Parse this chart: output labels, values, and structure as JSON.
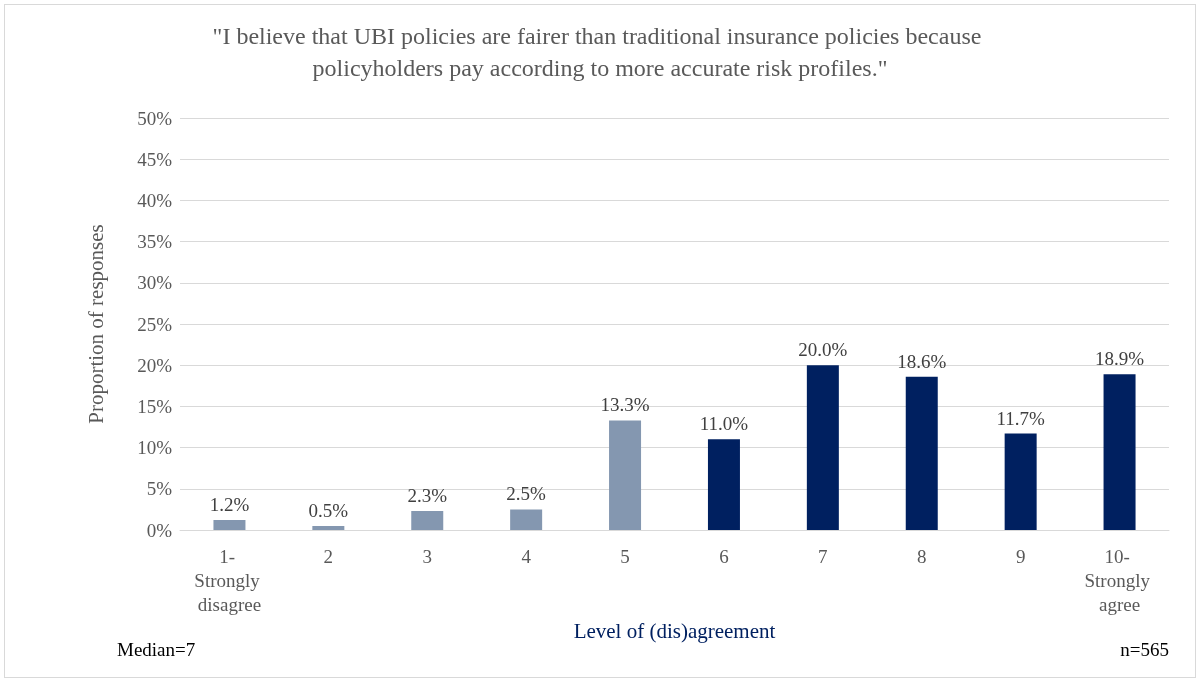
{
  "chart_data": {
    "type": "bar",
    "title": "\"I believe that UBI policies are fairer than traditional insurance policies because policyholders pay according to more accurate risk profiles.\"",
    "xlabel": "Level of (dis)agreement",
    "ylabel": "Proportion of responses",
    "categories": [
      "1- Strongly disagree",
      "2",
      "3",
      "4",
      "5",
      "6",
      "7",
      "8",
      "9",
      "10- Strongly agree"
    ],
    "values": [
      1.2,
      0.5,
      2.3,
      2.5,
      13.3,
      11.0,
      20.0,
      18.6,
      11.7,
      18.9
    ],
    "colors": [
      "#8497b0",
      "#8497b0",
      "#8497b0",
      "#8497b0",
      "#8497b0",
      "#002060",
      "#002060",
      "#002060",
      "#002060",
      "#002060"
    ],
    "ylim": [
      0,
      50
    ],
    "yticks": [
      {
        "value": 0,
        "label": "0%"
      },
      {
        "value": 5,
        "label": "5%"
      },
      {
        "value": 10,
        "label": "10%"
      },
      {
        "value": 15,
        "label": "15%"
      },
      {
        "value": 20,
        "label": "20%"
      },
      {
        "value": 25,
        "label": "25%"
      },
      {
        "value": 30,
        "label": "30%"
      },
      {
        "value": 35,
        "label": "35%"
      },
      {
        "value": 40,
        "label": "40%"
      },
      {
        "value": 45,
        "label": "45%"
      },
      {
        "value": 50,
        "label": "50%"
      }
    ],
    "value_labels": [
      "1.2%",
      "0.5%",
      "2.3%",
      "2.5%",
      "13.3%",
      "11.0%",
      "20.0%",
      "18.6%",
      "11.7%",
      "18.9%"
    ],
    "grid": "y",
    "annotations": [
      "Median=7",
      "n=565"
    ]
  }
}
